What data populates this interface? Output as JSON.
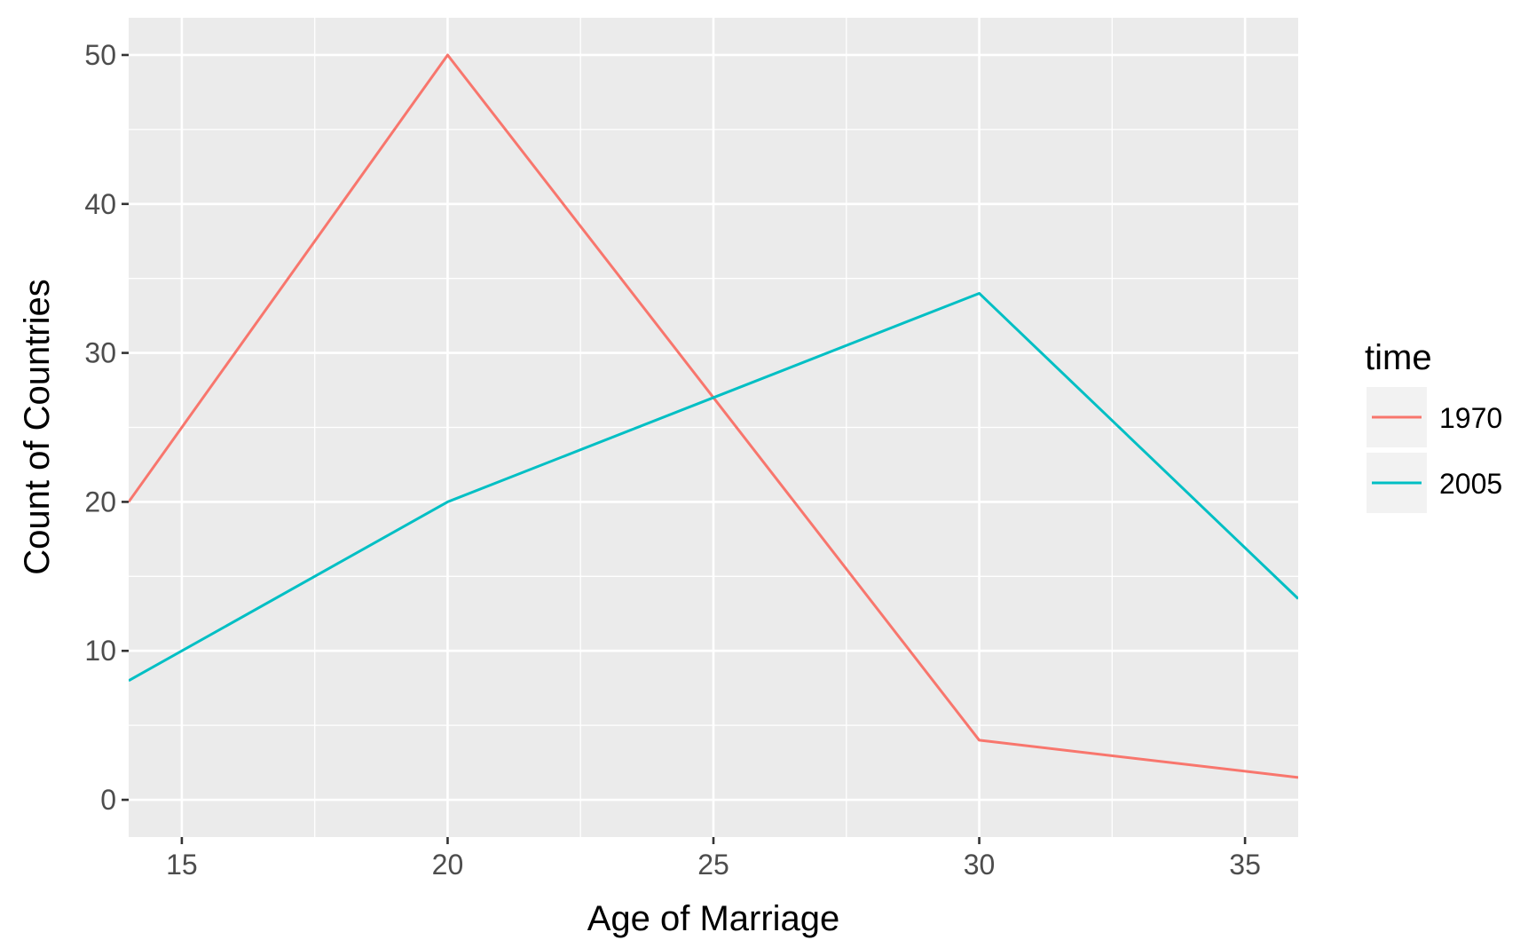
{
  "chart_data": {
    "type": "line",
    "title": "",
    "xlabel": "Age of Marriage",
    "ylabel": "Count of Countries",
    "xlim": [
      14,
      36
    ],
    "ylim": [
      -2.5,
      52.5
    ],
    "x_ticks": [
      15,
      20,
      25,
      30,
      35
    ],
    "y_ticks": [
      0,
      10,
      20,
      30,
      40,
      50
    ],
    "grid": true,
    "legend": {
      "title": "time",
      "position": "right"
    },
    "series": [
      {
        "name": "1970",
        "color": "#F8766D",
        "x": [
          14,
          20,
          25,
          30,
          36
        ],
        "values": [
          20,
          50,
          27,
          4,
          1.5
        ]
      },
      {
        "name": "2005",
        "color": "#00BFC4",
        "x": [
          14,
          20,
          25,
          30,
          36
        ],
        "values": [
          8,
          20,
          27,
          34,
          13.5
        ]
      }
    ]
  }
}
